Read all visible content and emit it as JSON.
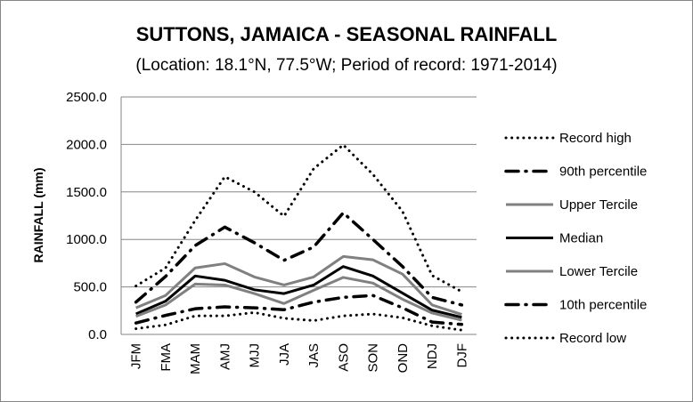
{
  "chart_data": {
    "type": "line",
    "title": "SUTTONS, JAMAICA - SEASONAL RAINFALL",
    "subtitle": "(Location: 18.1°N, 77.5°W; Period of record: 1971-2014)",
    "xlabel": "",
    "ylabel": "RAINFALL (mm)",
    "ylim": [
      0,
      2500
    ],
    "yticks": [
      "0.0",
      "500.0",
      "1000.0",
      "1500.0",
      "2000.0",
      "2500.0"
    ],
    "grid": true,
    "legend_position": "right",
    "categories": [
      "JFM",
      "FMA",
      "MAM",
      "AMJ",
      "MJJ",
      "JJA",
      "JAS",
      "ASO",
      "SON",
      "OND",
      "NDJ",
      "DJF"
    ],
    "series": [
      {
        "name": "Record high",
        "style": "dotted",
        "color": "#000000",
        "values": [
          510,
          700,
          1200,
          1660,
          1500,
          1245,
          1745,
          1995,
          1685,
          1295,
          620,
          450
        ]
      },
      {
        "name": "90th percentile",
        "style": "dashdot",
        "color": "#000000",
        "values": [
          340,
          610,
          935,
          1130,
          965,
          780,
          920,
          1280,
          1000,
          715,
          390,
          310
        ]
      },
      {
        "name": "Upper Tercile",
        "style": "solid",
        "color": "#808080",
        "values": [
          280,
          410,
          700,
          745,
          605,
          520,
          605,
          820,
          785,
          635,
          310,
          210
        ]
      },
      {
        "name": "Median",
        "style": "solid",
        "color": "#000000",
        "values": [
          215,
          350,
          615,
          570,
          470,
          430,
          520,
          715,
          615,
          435,
          255,
          180
        ]
      },
      {
        "name": "Lower Tercile",
        "style": "solid",
        "color": "#808080",
        "values": [
          190,
          310,
          530,
          520,
          430,
          325,
          465,
          600,
          540,
          370,
          225,
          150
        ]
      },
      {
        "name": "10th percentile",
        "style": "dashdot",
        "color": "#000000",
        "values": [
          120,
          200,
          270,
          290,
          280,
          260,
          340,
          390,
          410,
          280,
          130,
          105
        ]
      },
      {
        "name": "Record low",
        "style": "dotted",
        "color": "#000000",
        "values": [
          60,
          100,
          195,
          195,
          230,
          170,
          145,
          195,
          215,
          175,
          90,
          45
        ]
      }
    ]
  }
}
